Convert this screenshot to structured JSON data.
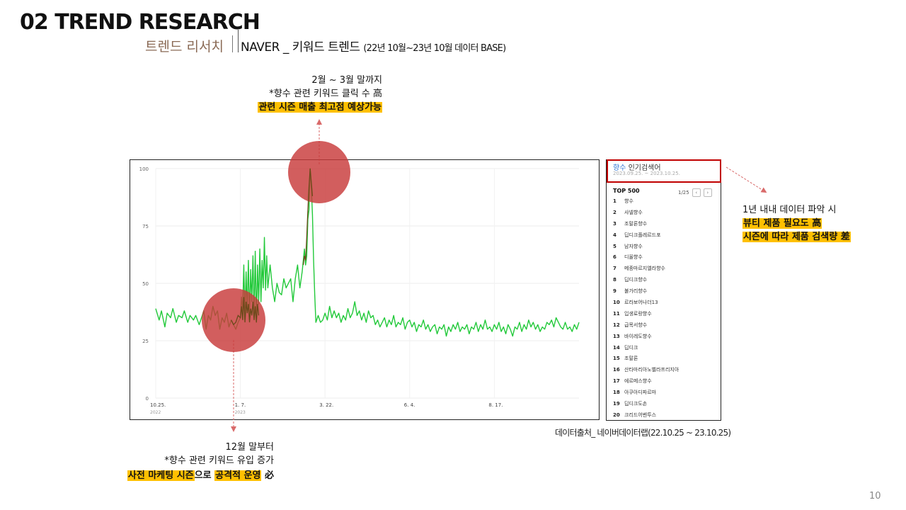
{
  "header": {
    "title": "02 TREND RESEARCH",
    "subtitle_kr": "트렌드 리서치",
    "subtitle_main": "NAVER _ 키워드 트렌드",
    "subtitle_range": "(22년 10월~23년 10월 데이터 BASE)"
  },
  "annotations": {
    "top_note": {
      "line1": "2월 ~ 3월 말까지",
      "line2": "*향수 관련 키워드 클릭 수 高",
      "highlight": "관련 시즌 매출 최고점 예상가능"
    },
    "bottom_note": {
      "line1": "12월 말부터",
      "line2": "*향수 관련 키워드 유입 증가",
      "highlight_a": "사전 마케팅 시즌",
      "connector": "으로 ",
      "highlight_b": "공격적 운영",
      "tail": " 必"
    },
    "side_note": {
      "line1": "1년 내내 데이터 파악 시",
      "highlight1": "뷰티 제품 필요도 高",
      "highlight2": "시즌에 따라 제품 검색량 差"
    },
    "source": "데이터출처_ 네이버데이터랩(22.10.25 ~ 23.10.25)",
    "page_number": "10"
  },
  "colors": {
    "line": "#22c93a",
    "circle": "#c83a3a",
    "highlight": "#ffc000",
    "panel_border": "#c00000",
    "arrow": "#d96a6a"
  },
  "panel": {
    "title_keyword": "향수",
    "title_rest": " 인기검색어",
    "date_range": "2023.09.25. ~ 2023.10.25.",
    "top_label": "TOP 500",
    "pager": "1/25",
    "items": [
      {
        "rank": "1",
        "name": "향수"
      },
      {
        "rank": "2",
        "name": "샤넬향수"
      },
      {
        "rank": "3",
        "name": "조말론향수"
      },
      {
        "rank": "4",
        "name": "딥디크플레르드포"
      },
      {
        "rank": "5",
        "name": "남자향수"
      },
      {
        "rank": "6",
        "name": "디올향수"
      },
      {
        "rank": "7",
        "name": "메종마르지엘라향수"
      },
      {
        "rank": "8",
        "name": "딥디크향수"
      },
      {
        "rank": "9",
        "name": "불가리향수"
      },
      {
        "rank": "10",
        "name": "르라보어나더13"
      },
      {
        "rank": "11",
        "name": "입생로랑향수"
      },
      {
        "rank": "12",
        "name": "급목서향수"
      },
      {
        "rank": "13",
        "name": "바이레도향수"
      },
      {
        "rank": "14",
        "name": "딥디크"
      },
      {
        "rank": "15",
        "name": "조말론"
      },
      {
        "rank": "16",
        "name": "산타마리아노벨라프리지아"
      },
      {
        "rank": "17",
        "name": "에르메스향수"
      },
      {
        "rank": "18",
        "name": "아쿠아디파르마"
      },
      {
        "rank": "19",
        "name": "딥디크도손"
      },
      {
        "rank": "20",
        "name": "크리드어벤투스"
      }
    ]
  },
  "chart_data": {
    "type": "line",
    "ylim": [
      0,
      100
    ],
    "y_ticks": [
      0,
      25,
      50,
      75,
      100
    ],
    "x_ticks": [
      {
        "label": "10.25.",
        "sub": "2022",
        "day": 0
      },
      {
        "label": "1. 7.",
        "sub": "2023",
        "day": 74
      },
      {
        "label": "3. 22.",
        "sub": "",
        "day": 148
      },
      {
        "label": "6. 4.",
        "sub": "",
        "day": 222
      },
      {
        "label": "8. 17.",
        "sub": "",
        "day": 296
      }
    ],
    "grid": true,
    "series": [
      {
        "values": [
          [
            0,
            39
          ],
          [
            3,
            34
          ],
          [
            5,
            38
          ],
          [
            8,
            31
          ],
          [
            10,
            37
          ],
          [
            13,
            35
          ],
          [
            15,
            39
          ],
          [
            18,
            33
          ],
          [
            20,
            36
          ],
          [
            23,
            35
          ],
          [
            25,
            38
          ],
          [
            28,
            33
          ],
          [
            30,
            36
          ],
          [
            33,
            34
          ],
          [
            35,
            36
          ],
          [
            38,
            32
          ],
          [
            40,
            35
          ],
          [
            42,
            38
          ],
          [
            44,
            30
          ],
          [
            46,
            36
          ],
          [
            48,
            34
          ],
          [
            50,
            40
          ],
          [
            52,
            36
          ],
          [
            54,
            38
          ],
          [
            56,
            30
          ],
          [
            58,
            35
          ],
          [
            60,
            33
          ],
          [
            62,
            37
          ],
          [
            64,
            31
          ],
          [
            66,
            34
          ],
          [
            68,
            32
          ],
          [
            70,
            30
          ],
          [
            72,
            33
          ],
          [
            74,
            35
          ],
          [
            75,
            44
          ],
          [
            76,
            38
          ],
          [
            77,
            58
          ],
          [
            78,
            35
          ],
          [
            79,
            55
          ],
          [
            80,
            38
          ],
          [
            81,
            60
          ],
          [
            82,
            34
          ],
          [
            83,
            56
          ],
          [
            84,
            42
          ],
          [
            85,
            62
          ],
          [
            86,
            35
          ],
          [
            87,
            64
          ],
          [
            88,
            33
          ],
          [
            89,
            58
          ],
          [
            90,
            41
          ],
          [
            91,
            65
          ],
          [
            92,
            42
          ],
          [
            93,
            60
          ],
          [
            94,
            48
          ],
          [
            95,
            70
          ],
          [
            96,
            47
          ],
          [
            97,
            62
          ],
          [
            98,
            48
          ],
          [
            100,
            58
          ],
          [
            102,
            48
          ],
          [
            104,
            42
          ],
          [
            106,
            50
          ],
          [
            108,
            46
          ],
          [
            110,
            45
          ],
          [
            112,
            52
          ],
          [
            114,
            48
          ],
          [
            116,
            50
          ],
          [
            118,
            52
          ],
          [
            120,
            42
          ],
          [
            122,
            52
          ],
          [
            124,
            58
          ],
          [
            126,
            48
          ],
          [
            128,
            55
          ],
          [
            130,
            65
          ],
          [
            131,
            58
          ],
          [
            132,
            62
          ],
          [
            133,
            78
          ],
          [
            134,
            82
          ],
          [
            135,
            100
          ],
          [
            136,
            92
          ],
          [
            137,
            80
          ],
          [
            138,
            60
          ],
          [
            139,
            45
          ],
          [
            140,
            33
          ],
          [
            142,
            36
          ],
          [
            144,
            33
          ],
          [
            146,
            34
          ],
          [
            148,
            37
          ],
          [
            150,
            34
          ],
          [
            152,
            40
          ],
          [
            154,
            35
          ],
          [
            156,
            38
          ],
          [
            158,
            35
          ],
          [
            160,
            37
          ],
          [
            162,
            33
          ],
          [
            164,
            36
          ],
          [
            166,
            34
          ],
          [
            168,
            39
          ],
          [
            170,
            35
          ],
          [
            172,
            37
          ],
          [
            174,
            42
          ],
          [
            176,
            36
          ],
          [
            178,
            38
          ],
          [
            180,
            34
          ],
          [
            182,
            37
          ],
          [
            184,
            33
          ],
          [
            186,
            38
          ],
          [
            188,
            35
          ],
          [
            190,
            36
          ],
          [
            192,
            32
          ],
          [
            194,
            34
          ],
          [
            196,
            31
          ],
          [
            198,
            33
          ],
          [
            200,
            35
          ],
          [
            202,
            31
          ],
          [
            204,
            34
          ],
          [
            206,
            32
          ],
          [
            208,
            36
          ],
          [
            210,
            31
          ],
          [
            212,
            33
          ],
          [
            214,
            32
          ],
          [
            216,
            35
          ],
          [
            218,
            30
          ],
          [
            220,
            33
          ],
          [
            222,
            34
          ],
          [
            224,
            31
          ],
          [
            226,
            33
          ],
          [
            228,
            29
          ],
          [
            230,
            32
          ],
          [
            232,
            31
          ],
          [
            234,
            34
          ],
          [
            236,
            30
          ],
          [
            238,
            32
          ],
          [
            240,
            29
          ],
          [
            242,
            31
          ],
          [
            244,
            32
          ],
          [
            246,
            28
          ],
          [
            248,
            31
          ],
          [
            250,
            30
          ],
          [
            252,
            32
          ],
          [
            254,
            27
          ],
          [
            256,
            31
          ],
          [
            258,
            29
          ],
          [
            260,
            32
          ],
          [
            262,
            30
          ],
          [
            264,
            33
          ],
          [
            266,
            29
          ],
          [
            268,
            31
          ],
          [
            270,
            30
          ],
          [
            272,
            32
          ],
          [
            274,
            28
          ],
          [
            276,
            31
          ],
          [
            278,
            30
          ],
          [
            280,
            33
          ],
          [
            282,
            29
          ],
          [
            284,
            32
          ],
          [
            286,
            30
          ],
          [
            288,
            34
          ],
          [
            290,
            30
          ],
          [
            292,
            31
          ],
          [
            294,
            29
          ],
          [
            296,
            32
          ],
          [
            298,
            30
          ],
          [
            300,
            33
          ],
          [
            302,
            29
          ],
          [
            304,
            31
          ],
          [
            306,
            28
          ],
          [
            308,
            32
          ],
          [
            310,
            30
          ],
          [
            312,
            27
          ],
          [
            314,
            31
          ],
          [
            316,
            30
          ],
          [
            318,
            33
          ],
          [
            320,
            29
          ],
          [
            322,
            32
          ],
          [
            324,
            30
          ],
          [
            326,
            34
          ],
          [
            328,
            31
          ],
          [
            330,
            33
          ],
          [
            332,
            30
          ],
          [
            334,
            32
          ],
          [
            336,
            29
          ],
          [
            338,
            31
          ],
          [
            340,
            30
          ],
          [
            342,
            33
          ],
          [
            344,
            32
          ],
          [
            346,
            34
          ],
          [
            348,
            31
          ],
          [
            350,
            35
          ],
          [
            352,
            33
          ],
          [
            354,
            31
          ],
          [
            356,
            30
          ],
          [
            358,
            33
          ],
          [
            360,
            30
          ],
          [
            362,
            31
          ],
          [
            364,
            29
          ],
          [
            366,
            32
          ],
          [
            368,
            30
          ],
          [
            370,
            33
          ]
        ]
      }
    ],
    "brown_overlay": {
      "values": [
        [
          66,
          34
        ],
        [
          68,
          32
        ],
        [
          70,
          33
        ],
        [
          72,
          36
        ],
        [
          74,
          35
        ],
        [
          75,
          40
        ],
        [
          76,
          34
        ],
        [
          77,
          44
        ],
        [
          78,
          33
        ],
        [
          79,
          42
        ],
        [
          80,
          37
        ],
        [
          81,
          41
        ],
        [
          82,
          33
        ],
        [
          83,
          39
        ],
        [
          84,
          36
        ],
        [
          85,
          42
        ],
        [
          86,
          34
        ],
        [
          87,
          40
        ],
        [
          88,
          33
        ],
        [
          89,
          41
        ],
        [
          90,
          36
        ]
      ]
    },
    "peak_overlay": {
      "values": [
        [
          129,
          58
        ],
        [
          130,
          62
        ],
        [
          131,
          60
        ],
        [
          132,
          70
        ],
        [
          133,
          82
        ],
        [
          134,
          92
        ],
        [
          135,
          100
        ],
        [
          136,
          94
        ],
        [
          137,
          88
        ]
      ]
    }
  }
}
